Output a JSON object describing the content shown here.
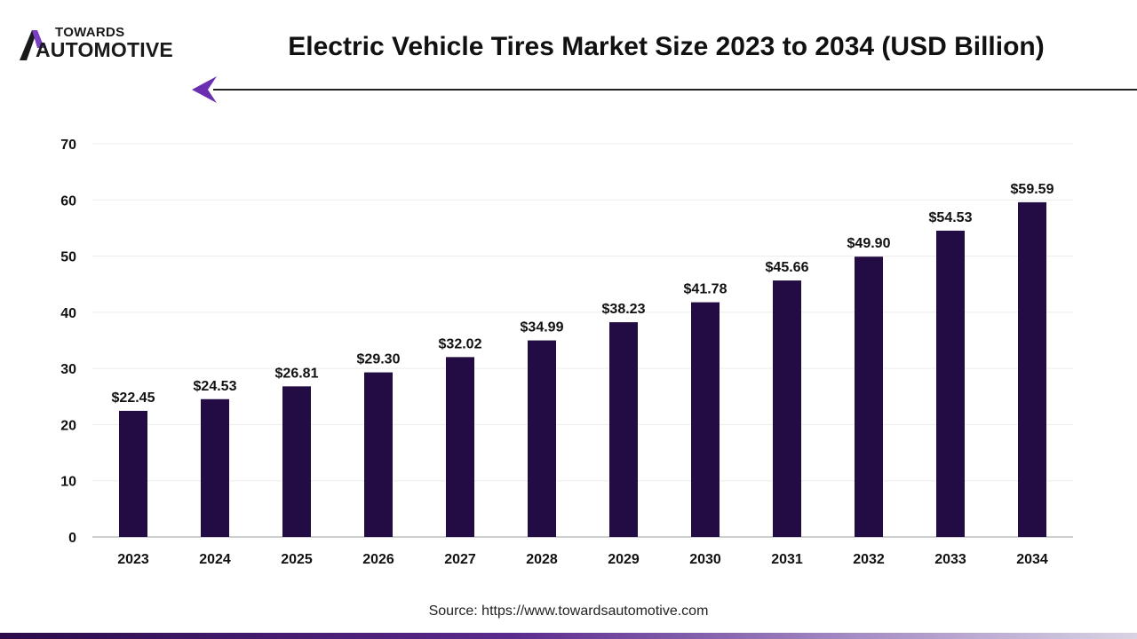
{
  "brand": {
    "top": "TOWARDS",
    "main": "AUTOMOTIVE",
    "colors": {
      "accent": "#7b3fc4",
      "dark": "#1a1a1a"
    }
  },
  "title": "Electric Vehicle Tires Market Size 2023 to 2034 (USD Billion)",
  "source": "Source: https://www.towardsautomotive.com",
  "chart_data": {
    "type": "bar",
    "title": "Electric Vehicle Tires Market Size 2023 to 2034 (USD Billion)",
    "xlabel": "",
    "ylabel": "",
    "ylim": [
      0,
      70
    ],
    "yticks": [
      0,
      10,
      20,
      30,
      40,
      50,
      60,
      70
    ],
    "grid": true,
    "legend": "none",
    "bar_color": "#230c44",
    "categories": [
      "2023",
      "2024",
      "2025",
      "2026",
      "2027",
      "2028",
      "2029",
      "2030",
      "2031",
      "2032",
      "2033",
      "2034"
    ],
    "values": [
      22.45,
      24.53,
      26.81,
      29.3,
      32.02,
      34.99,
      38.23,
      41.78,
      45.66,
      49.9,
      54.53,
      59.59
    ],
    "value_labels": [
      "$22.45",
      "$24.53",
      "$26.81",
      "$29.30",
      "$32.02",
      "$34.99",
      "$38.23",
      "$41.78",
      "$45.66",
      "$49.90",
      "$54.53",
      "$59.59"
    ]
  }
}
